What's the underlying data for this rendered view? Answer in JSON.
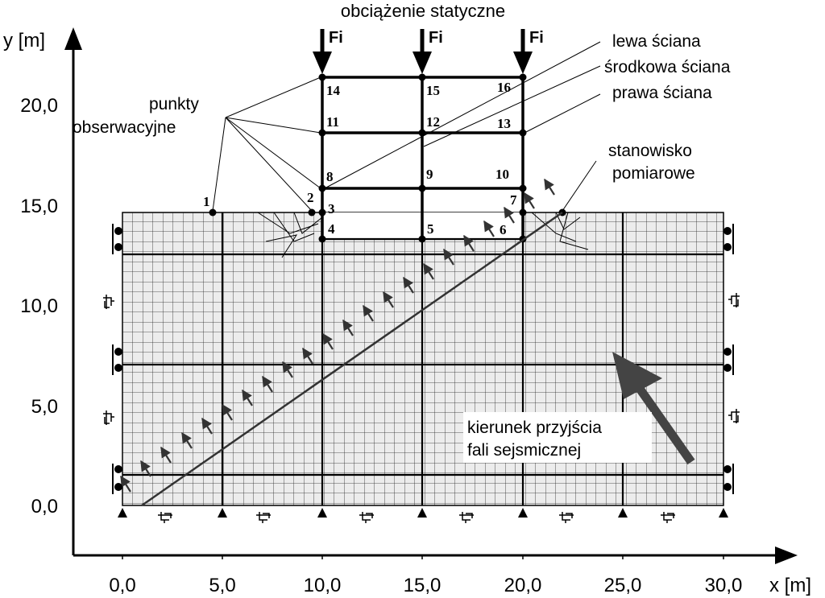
{
  "title": "obciążenie statyczne",
  "axes": {
    "x_label": "x [m]",
    "y_label": "y [m]",
    "x_ticks": [
      "0,0",
      "5,0",
      "10,0",
      "15,0",
      "20,0",
      "25,0",
      "30,0"
    ],
    "y_ticks": [
      "0,0",
      "5,0",
      "10,0",
      "15,0",
      "20,0"
    ]
  },
  "loads": {
    "label": "Fi"
  },
  "annotations": {
    "observation_points_line1": "punkty",
    "observation_points_line2": "obserwacyjne",
    "left_wall": "lewa ściana",
    "middle_wall": "środkowa ściana",
    "right_wall": "prawa ściana",
    "station_line1": "stanowisko",
    "station_line2": "pomiarowe",
    "wave_line1": "kierunek przyjścia",
    "wave_line2": "fali sejsmicznej"
  },
  "points": [
    "1",
    "2",
    "3",
    "4",
    "5",
    "6",
    "7",
    "8",
    "9",
    "10",
    "11",
    "12",
    "13",
    "14",
    "15",
    "16"
  ]
}
